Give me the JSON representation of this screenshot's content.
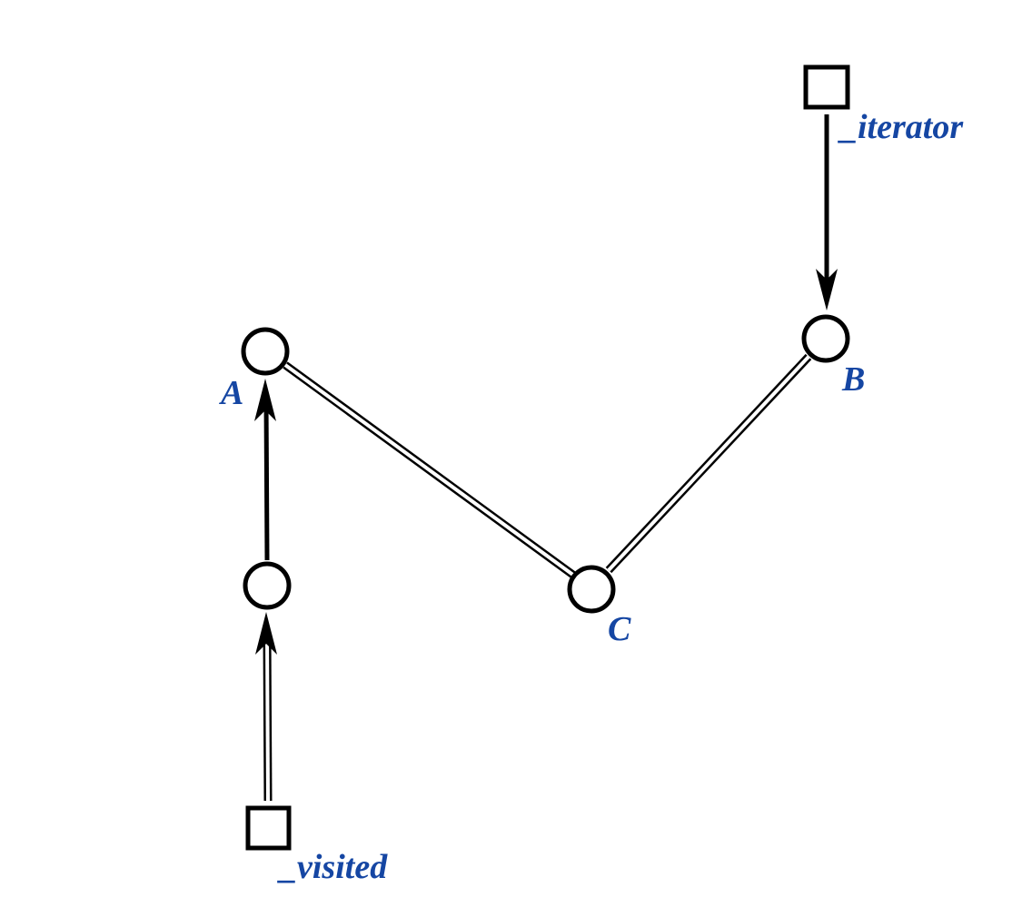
{
  "diagram": {
    "title": "",
    "label_color": "#1546a3",
    "line_color": "#000000",
    "nodes": [
      {
        "id": "A",
        "label": "A",
        "shape": "circle"
      },
      {
        "id": "B",
        "label": "B",
        "shape": "circle"
      },
      {
        "id": "C",
        "label": "C",
        "shape": "circle"
      },
      {
        "id": "D",
        "label": "",
        "shape": "circle"
      },
      {
        "id": "iterator",
        "label": "_iterator",
        "shape": "square"
      },
      {
        "id": "visited",
        "label": "_visited",
        "shape": "square"
      }
    ],
    "edges": [
      {
        "from": "iterator",
        "to": "B",
        "style": "single-arrow"
      },
      {
        "from": "D",
        "to": "A",
        "style": "single-arrow"
      },
      {
        "from": "visited",
        "to": "D",
        "style": "double-arrow"
      },
      {
        "from": "A",
        "to": "C",
        "style": "double-line"
      },
      {
        "from": "B",
        "to": "C",
        "style": "double-line"
      }
    ]
  }
}
